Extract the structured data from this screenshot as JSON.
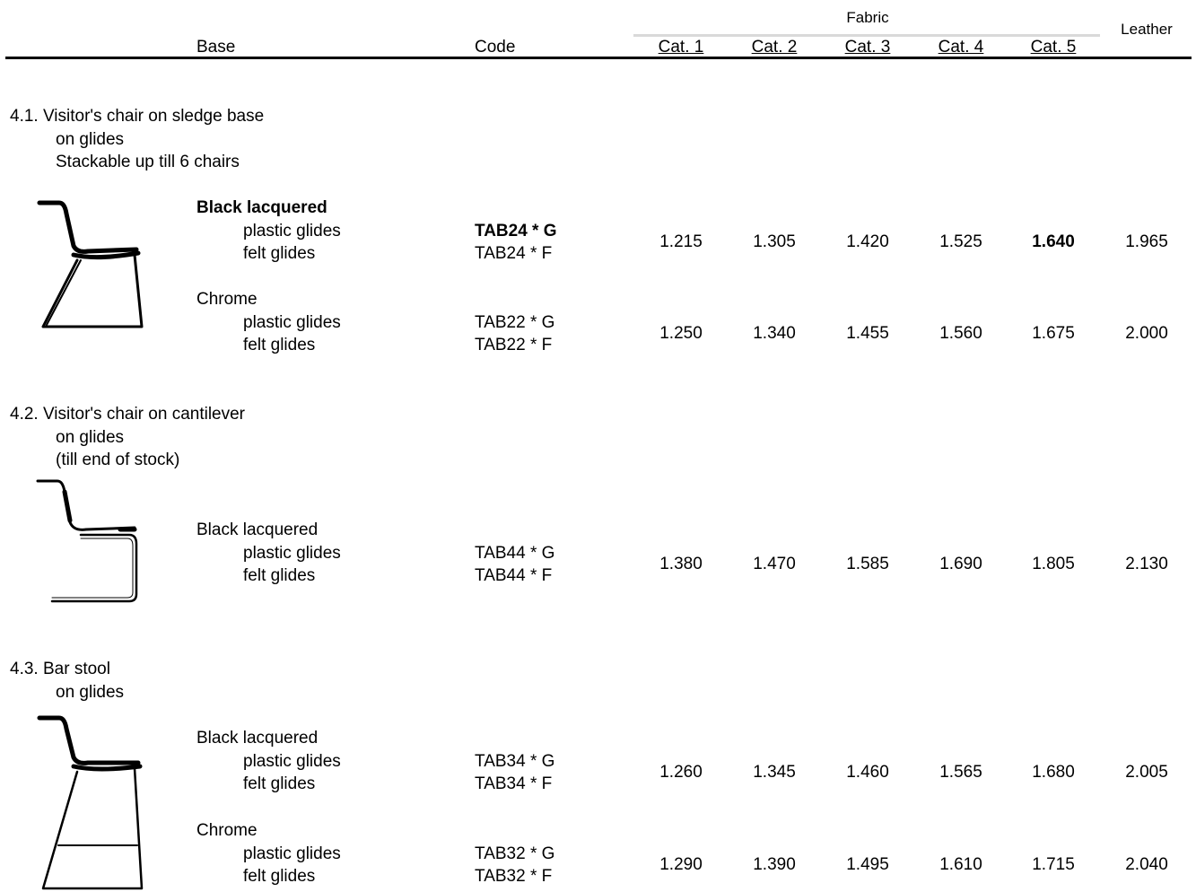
{
  "header": {
    "base": "Base",
    "code": "Code",
    "fabric": "Fabric",
    "categories": [
      "Cat. 1",
      "Cat. 2",
      "Cat. 3",
      "Cat. 4",
      "Cat. 5"
    ],
    "leather": "Leather"
  },
  "sections": [
    {
      "title": "4.1. Visitor's chair on sledge base",
      "notes": [
        "on glides",
        "Stackable up till 6 chairs"
      ],
      "groups": [
        {
          "finish": "Black lacquered",
          "options": [
            "plastic glides",
            "felt glides"
          ],
          "codes": [
            "TAB24 * G",
            "TAB24 * F"
          ],
          "prices": [
            "1.215",
            "1.305",
            "1.420",
            "1.525",
            "1.640",
            "1.965"
          ]
        },
        {
          "finish": "Chrome",
          "options": [
            "plastic glides",
            "felt glides"
          ],
          "codes": [
            "TAB22 * G",
            "TAB22 * F"
          ],
          "prices": [
            "1.250",
            "1.340",
            "1.455",
            "1.560",
            "1.675",
            "2.000"
          ]
        }
      ]
    },
    {
      "title": "4.2. Visitor's chair on cantilever",
      "notes": [
        "on glides",
        "(till end of stock)"
      ],
      "groups": [
        {
          "finish": "Black lacquered",
          "options": [
            "plastic glides",
            "felt glides"
          ],
          "codes": [
            "TAB44 * G",
            "TAB44 * F"
          ],
          "prices": [
            "1.380",
            "1.470",
            "1.585",
            "1.690",
            "1.805",
            "2.130"
          ]
        }
      ]
    },
    {
      "title": "4.3. Bar stool",
      "notes": [
        "on glides"
      ],
      "groups": [
        {
          "finish": "Black lacquered",
          "options": [
            "plastic glides",
            "felt glides"
          ],
          "codes": [
            "TAB34 * G",
            "TAB34 * F"
          ],
          "prices": [
            "1.260",
            "1.345",
            "1.460",
            "1.565",
            "1.680",
            "2.005"
          ]
        },
        {
          "finish": "Chrome",
          "options": [
            "plastic glides",
            "felt glides"
          ],
          "codes": [
            "TAB32 * G",
            "TAB32 * F"
          ],
          "prices": [
            "1.290",
            "1.390",
            "1.495",
            "1.610",
            "1.715",
            "2.040"
          ]
        }
      ]
    }
  ]
}
